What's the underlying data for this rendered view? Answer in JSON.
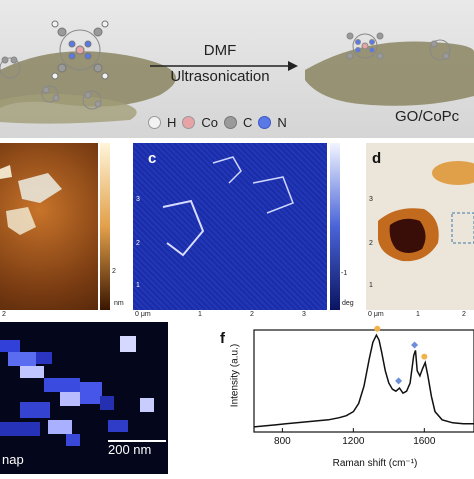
{
  "schematic": {
    "arrow_top": "DMF",
    "arrow_bottom": "Ultrasonication",
    "product_label": "GO/CoPc",
    "legend": [
      {
        "symbol": "H",
        "color": "#f2f2f2"
      },
      {
        "symbol": "Co",
        "color": "#e8a3a7"
      },
      {
        "symbol": "C",
        "color": "#9a9a9a"
      },
      {
        "symbol": "N",
        "color": "#5a78e6"
      }
    ]
  },
  "panels": {
    "b": {
      "x_ticks": [
        "2"
      ],
      "unit": "nm",
      "cbar_label": "2"
    },
    "c": {
      "letter": "c",
      "x_ticks": [
        "0 μm",
        "1",
        "2",
        "3"
      ],
      "y_ticks": [
        "3",
        "2",
        "1"
      ],
      "unit": "deg",
      "cbar_label": "-1"
    },
    "d": {
      "letter": "d",
      "x_ticks": [
        "0 μm",
        "1",
        "2"
      ],
      "y_ticks": [
        "3",
        "2",
        "1"
      ]
    },
    "e": {
      "map_label": "nap",
      "scale_bar": "200 nm"
    }
  },
  "chart_data": {
    "type": "line",
    "panel_letter": "f",
    "xlabel": "Raman shift (cm⁻¹)",
    "ylabel": "Intensity (a.u.)",
    "x_ticks": [
      "800",
      "1200",
      "1600"
    ],
    "xlim": [
      640,
      1880
    ],
    "series": [
      {
        "x": [
          640,
          700,
          760,
          820,
          880,
          940,
          1000,
          1060,
          1120,
          1160,
          1200,
          1230,
          1260,
          1290,
          1310,
          1330,
          1345,
          1360,
          1380,
          1400,
          1420,
          1440,
          1460,
          1480,
          1500,
          1520,
          1540,
          1550,
          1560,
          1575,
          1590,
          1605,
          1620,
          1640,
          1660,
          1700,
          1760,
          1820,
          1880
        ],
        "y": [
          0.05,
          0.06,
          0.07,
          0.08,
          0.09,
          0.1,
          0.11,
          0.12,
          0.14,
          0.16,
          0.2,
          0.28,
          0.45,
          0.72,
          0.88,
          0.95,
          0.9,
          0.78,
          0.6,
          0.48,
          0.42,
          0.4,
          0.43,
          0.38,
          0.4,
          0.48,
          0.75,
          0.8,
          0.6,
          0.55,
          0.62,
          0.68,
          0.55,
          0.35,
          0.2,
          0.12,
          0.09,
          0.08,
          0.08
        ]
      }
    ],
    "markers": [
      {
        "shape": "circle",
        "color": "#f2b24a",
        "x": 1335
      },
      {
        "shape": "diamond",
        "color": "#6c8fd8",
        "x": 1455
      },
      {
        "shape": "diamond",
        "color": "#6c8fd8",
        "x": 1545
      },
      {
        "shape": "circle",
        "color": "#f2b24a",
        "x": 1600
      }
    ]
  }
}
